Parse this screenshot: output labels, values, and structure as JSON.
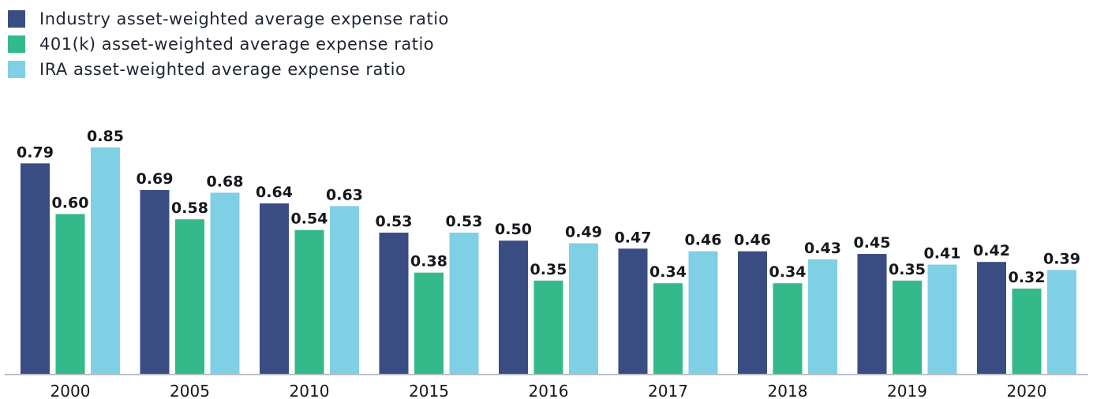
{
  "chart_data": {
    "type": "bar",
    "categories": [
      "2000",
      "2005",
      "2010",
      "2015",
      "2016",
      "2017",
      "2018",
      "2019",
      "2020"
    ],
    "series": [
      {
        "name": "Industry asset-weighted average expense ratio",
        "color": "#3a4d82",
        "values": [
          0.79,
          0.69,
          0.64,
          0.53,
          0.5,
          0.47,
          0.46,
          0.45,
          0.42
        ],
        "labels": [
          "0.79",
          "0.69",
          "0.64",
          "0.53",
          "0.50",
          "0.47",
          "0.46",
          "0.45",
          "0.42"
        ]
      },
      {
        "name": "401(k) asset-weighted average expense ratio",
        "color": "#34b98a",
        "values": [
          0.6,
          0.58,
          0.54,
          0.38,
          0.35,
          0.34,
          0.34,
          0.35,
          0.32
        ],
        "labels": [
          "0.60",
          "0.58",
          "0.54",
          "0.38",
          "0.35",
          "0.34",
          "0.34",
          "0.35",
          "0.32"
        ]
      },
      {
        "name": "IRA asset-weighted average expense ratio",
        "color": "#7fd0e4",
        "values": [
          0.85,
          0.68,
          0.63,
          0.53,
          0.49,
          0.46,
          0.43,
          0.41,
          0.39
        ],
        "labels": [
          "0.85",
          "0.68",
          "0.63",
          "0.53",
          "0.49",
          "0.46",
          "0.43",
          "0.41",
          "0.39"
        ]
      }
    ],
    "ylim": [
      0,
      0.85
    ],
    "grid": false,
    "legend_position": "top-left",
    "baseline_color": "#b8c0c6"
  }
}
